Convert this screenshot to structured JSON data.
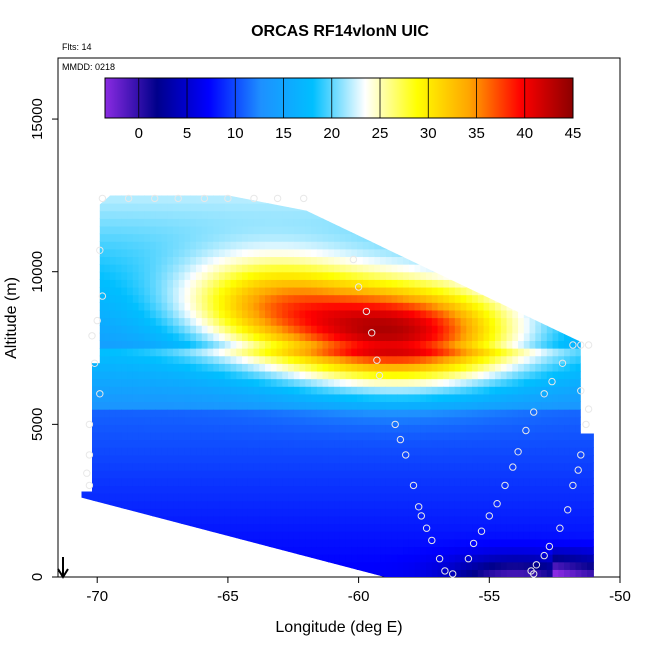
{
  "chart_data": {
    "type": "heatmap",
    "title": "ORCAS RF14vlonN UIC",
    "annotations": {
      "flights": "Flts: 14",
      "date": "MMDD: 0218"
    },
    "xlabel": "Longitude (deg E)",
    "ylabel": "Altitude (m)",
    "xlim": [
      -71.5,
      -50
    ],
    "ylim": [
      0,
      17000
    ],
    "x_ticks": [
      -70,
      -65,
      -60,
      -55,
      -50
    ],
    "y_ticks": [
      0,
      5000,
      10000,
      15000
    ],
    "colorbar": {
      "range": [
        -3.5,
        45
      ],
      "ticks": [
        0,
        5,
        10,
        15,
        20,
        25,
        30,
        35,
        40,
        45
      ],
      "colors": [
        "#8a2be2",
        "#00008b",
        "#0000ff",
        "#1e90ff",
        "#00bfff",
        "#ffffff",
        "#ffff00",
        "#ffa500",
        "#ff0000",
        "#8b0000"
      ]
    },
    "domain_polygon": [
      [
        -70.6,
        2800
      ],
      [
        -70.2,
        2800
      ],
      [
        -70.2,
        7000
      ],
      [
        -69.9,
        7000
      ],
      [
        -69.9,
        12200
      ],
      [
        -69.5,
        12500
      ],
      [
        -65.0,
        12500
      ],
      [
        -62.0,
        12000
      ],
      [
        -51.5,
        7700
      ],
      [
        -51.5,
        4700
      ],
      [
        -51.0,
        4700
      ],
      [
        -51.0,
        0
      ],
      [
        -59.0,
        0
      ],
      [
        -70.6,
        2600
      ]
    ],
    "features": [
      {
        "type": "warm-core",
        "center_lon": -58.5,
        "center_alt": 8000,
        "peak_value": 42
      },
      {
        "type": "cold-base",
        "center_lon": -54.0,
        "center_alt": 300,
        "min_value": -2
      }
    ],
    "flight_track_points": [
      [
        -69.8,
        12400
      ],
      [
        -68.8,
        12400
      ],
      [
        -67.8,
        12400
      ],
      [
        -66.9,
        12400
      ],
      [
        -65.9,
        12400
      ],
      [
        -65.0,
        12400
      ],
      [
        -64.0,
        12400
      ],
      [
        -63.1,
        12400
      ],
      [
        -62.1,
        12400
      ],
      [
        -60.2,
        10400
      ],
      [
        -60.0,
        9500
      ],
      [
        -59.7,
        8700
      ],
      [
        -59.5,
        8000
      ],
      [
        -59.3,
        7100
      ],
      [
        -59.2,
        6600
      ],
      [
        -58.6,
        5000
      ],
      [
        -58.4,
        4500
      ],
      [
        -58.2,
        4000
      ],
      [
        -57.9,
        3000
      ],
      [
        -57.7,
        2300
      ],
      [
        -57.6,
        2000
      ],
      [
        -57.4,
        1600
      ],
      [
        -57.2,
        1200
      ],
      [
        -56.9,
        600
      ],
      [
        -56.7,
        200
      ],
      [
        -56.4,
        100
      ],
      [
        -55.8,
        600
      ],
      [
        -55.6,
        1100
      ],
      [
        -55.3,
        1500
      ],
      [
        -55.0,
        2000
      ],
      [
        -54.7,
        2400
      ],
      [
        -54.4,
        3000
      ],
      [
        -54.1,
        3600
      ],
      [
        -53.9,
        4100
      ],
      [
        -53.6,
        4800
      ],
      [
        -53.3,
        5400
      ],
      [
        -52.9,
        6000
      ],
      [
        -52.6,
        6400
      ],
      [
        -52.2,
        7000
      ],
      [
        -51.8,
        7600
      ],
      [
        -51.5,
        7600
      ],
      [
        -51.2,
        7600
      ],
      [
        -51.5,
        6100
      ],
      [
        -51.2,
        5500
      ],
      [
        -51.3,
        5000
      ],
      [
        -51.5,
        4000
      ],
      [
        -51.6,
        3500
      ],
      [
        -51.8,
        3000
      ],
      [
        -52.0,
        2200
      ],
      [
        -52.3,
        1600
      ],
      [
        -52.7,
        1000
      ],
      [
        -52.9,
        700
      ],
      [
        -53.2,
        400
      ],
      [
        -53.4,
        200
      ],
      [
        -53.3,
        100
      ],
      [
        -69.9,
        6000
      ],
      [
        -70.1,
        7000
      ],
      [
        -70.2,
        7900
      ],
      [
        -70.0,
        8400
      ],
      [
        -70.3,
        5000
      ],
      [
        -70.3,
        4000
      ],
      [
        -70.4,
        3400
      ],
      [
        -70.3,
        3000
      ],
      [
        -69.9,
        10700
      ],
      [
        -69.8,
        9200
      ]
    ]
  }
}
